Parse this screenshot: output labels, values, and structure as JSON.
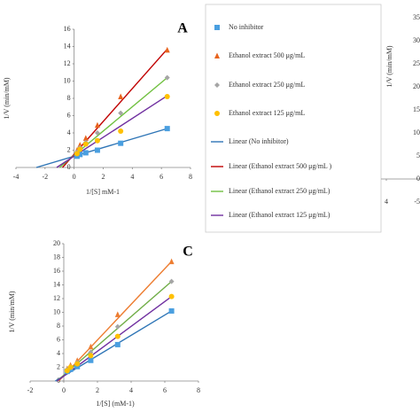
{
  "chart_data": [
    {
      "type": "scatter",
      "title": "A",
      "x_label": "1/[S] mM-1",
      "y_label": "1/V (min/mM)",
      "xlim": [
        -4,
        8
      ],
      "xticks": [
        -4,
        -2,
        0,
        2,
        4,
        6,
        8
      ],
      "ylim": [
        0,
        16
      ],
      "yticks": [
        0,
        2,
        4,
        6,
        8,
        10,
        12,
        14,
        16
      ],
      "legend": "right",
      "series": [
        {
          "name": "No inhibitor",
          "color": "#4a9fe0",
          "marker": "square",
          "x": [
            0.2,
            0.4,
            0.8,
            1.6,
            3.2,
            6.4
          ],
          "values": [
            1.3,
            1.5,
            1.7,
            2.0,
            2.8,
            4.5
          ]
        },
        {
          "name": "Ethanol extract 500 μg/mL",
          "color": "#e8641e",
          "marker": "triangle",
          "x": [
            0.2,
            0.4,
            0.8,
            1.6,
            3.2,
            6.4
          ],
          "values": [
            2.0,
            2.6,
            3.4,
            4.9,
            8.2,
            13.6
          ]
        },
        {
          "name": "Ethanol extract 250 μg/mL",
          "color": "#a5a5a5",
          "marker": "diamond",
          "x": [
            0.2,
            0.4,
            0.8,
            1.6,
            3.2,
            6.4
          ],
          "values": [
            1.8,
            2.3,
            2.9,
            4.0,
            6.3,
            10.4
          ]
        },
        {
          "name": "Ethanol extract 125 μg/mL",
          "color": "#ffc000",
          "marker": "circle",
          "x": [
            0.2,
            0.4,
            0.8,
            1.6,
            3.2,
            6.4
          ],
          "values": [
            1.6,
            2.1,
            2.7,
            3.1,
            4.2,
            8.2
          ]
        },
        {
          "name": "Linear (No inhibitor)",
          "color": "#2e75b6",
          "marker": "line",
          "x": [
            -2.6,
            6.4
          ],
          "values": [
            0,
            4.5
          ]
        },
        {
          "name": "Linear (Ethanol extract 500 μg/mL )",
          "color": "#c00000",
          "marker": "line",
          "x": [
            -0.8,
            6.4
          ],
          "values": [
            0,
            13.7
          ]
        },
        {
          "name": "Linear (Ethanol extract 250 μg/mL)",
          "color": "#70c040",
          "marker": "line",
          "x": [
            -1,
            6.4
          ],
          "values": [
            0,
            10.4
          ]
        },
        {
          "name": "Linear (Ethanol extract 125 μg/mL)",
          "color": "#7030a0",
          "marker": "line",
          "x": [
            -1.2,
            6.4
          ],
          "values": [
            0,
            8.3
          ]
        }
      ]
    },
    {
      "type": "scatter",
      "y_label": "1/V (min/mM)",
      "xticks": [
        4
      ],
      "ylim": [
        -5,
        35
      ],
      "yticks": [
        -5,
        0,
        5,
        10,
        15,
        20,
        25,
        30,
        35
      ],
      "series": []
    },
    {
      "type": "scatter",
      "title": "C",
      "x_label": "1/[S] (mM-1)",
      "y_label": "1/V (min/mM)",
      "xlim": [
        -2,
        8
      ],
      "xticks": [
        -2,
        0,
        2,
        4,
        6,
        8
      ],
      "ylim": [
        0,
        20
      ],
      "yticks": [
        0,
        2,
        4,
        6,
        8,
        10,
        12,
        14,
        16,
        18,
        20
      ],
      "series": [
        {
          "color": "#4a9fe0",
          "marker": "square",
          "x": [
            0.2,
            0.4,
            0.8,
            1.6,
            3.2,
            6.4
          ],
          "values": [
            1.4,
            1.7,
            2.1,
            3.0,
            5.3,
            10.2
          ]
        },
        {
          "color": "#ed7d31",
          "marker": "triangle",
          "x": [
            0.2,
            0.4,
            0.8,
            1.6,
            3.2,
            6.4
          ],
          "values": [
            1.8,
            2.3,
            3.0,
            5.0,
            9.7,
            17.4
          ]
        },
        {
          "color": "#a5a5a5",
          "marker": "diamond",
          "x": [
            0.2,
            0.4,
            0.8,
            1.6,
            3.2,
            6.4
          ],
          "values": [
            1.7,
            2.1,
            2.7,
            4.2,
            7.9,
            14.5
          ]
        },
        {
          "color": "#ffc000",
          "marker": "circle",
          "x": [
            0.2,
            0.4,
            0.8,
            1.6,
            3.2,
            6.4
          ],
          "values": [
            1.5,
            2.0,
            2.5,
            3.7,
            6.5,
            12.3
          ]
        },
        {
          "color": "#2e75b6",
          "marker": "line",
          "x": [
            -0.5,
            6.4
          ],
          "values": [
            0,
            10.2
          ]
        },
        {
          "color": "#ed7d31",
          "marker": "line",
          "x": [
            -0.3,
            6.4
          ],
          "values": [
            0,
            17.4
          ]
        },
        {
          "color": "#70ad47",
          "marker": "line",
          "x": [
            -0.4,
            6.4
          ],
          "values": [
            0,
            14.5
          ]
        },
        {
          "color": "#7030a0",
          "marker": "line",
          "x": [
            -0.4,
            6.4
          ],
          "values": [
            0,
            12.3
          ]
        }
      ]
    }
  ]
}
